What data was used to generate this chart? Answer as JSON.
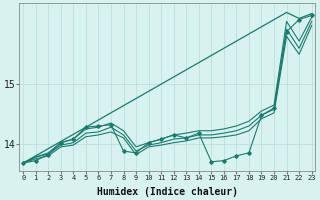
{
  "title": "",
  "xlabel": "Humidex (Indice chaleur)",
  "background_color": "#d8f2f0",
  "grid_color": "#c0dedd",
  "line_color": "#1a7a6e",
  "x_ticks": [
    0,
    1,
    2,
    3,
    4,
    5,
    6,
    7,
    8,
    9,
    10,
    11,
    12,
    13,
    14,
    15,
    16,
    17,
    18,
    19,
    20,
    21,
    22,
    23
  ],
  "y_ticks": [
    14,
    15
  ],
  "ylim": [
    13.55,
    16.35
  ],
  "xlim": [
    -0.3,
    23.3
  ],
  "series": {
    "line_straight": [
      13.68,
      13.8,
      13.92,
      14.04,
      14.16,
      14.28,
      14.4,
      14.52,
      14.64,
      14.76,
      14.88,
      15.0,
      15.12,
      15.24,
      15.36,
      15.48,
      15.6,
      15.72,
      15.84,
      15.96,
      16.08,
      16.2,
      16.1,
      16.18
    ],
    "line_upper": [
      13.68,
      13.78,
      13.85,
      14.02,
      14.08,
      14.25,
      14.28,
      14.35,
      14.22,
      13.95,
      14.02,
      14.08,
      14.15,
      14.18,
      14.22,
      14.22,
      14.25,
      14.3,
      14.38,
      14.55,
      14.65,
      16.05,
      15.72,
      16.12
    ],
    "line_mid1": [
      13.68,
      13.78,
      13.83,
      13.98,
      14.02,
      14.18,
      14.2,
      14.28,
      14.15,
      13.88,
      13.98,
      14.02,
      14.08,
      14.1,
      14.15,
      14.15,
      14.18,
      14.22,
      14.3,
      14.48,
      14.58,
      15.92,
      15.6,
      16.05
    ],
    "line_mid2": [
      13.68,
      13.75,
      13.8,
      13.95,
      13.98,
      14.12,
      14.15,
      14.2,
      14.1,
      13.82,
      13.95,
      13.98,
      14.02,
      14.05,
      14.1,
      14.1,
      14.12,
      14.15,
      14.22,
      14.42,
      14.52,
      15.8,
      15.5,
      15.98
    ],
    "line_marked": [
      13.68,
      13.72,
      13.82,
      14.02,
      14.08,
      14.28,
      14.3,
      14.32,
      13.88,
      13.85,
      14.02,
      14.08,
      14.15,
      14.1,
      14.18,
      13.7,
      13.72,
      13.8,
      13.85,
      14.48,
      14.6,
      15.88,
      16.08,
      16.15
    ]
  }
}
